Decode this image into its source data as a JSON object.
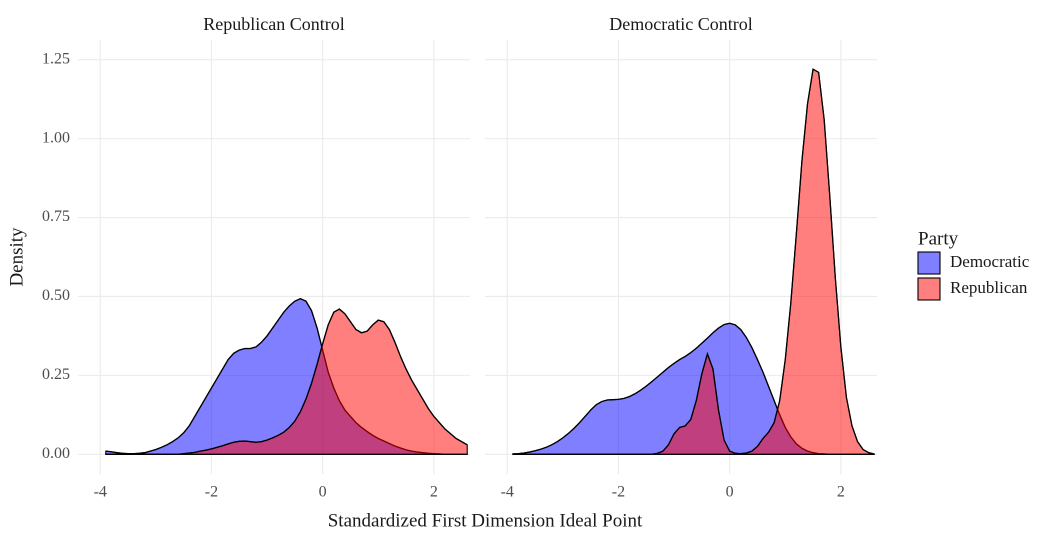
{
  "chart_data": {
    "type": "area",
    "xlabel": "Standardized First Dimension Ideal Point",
    "ylabel": "Density",
    "legend_title": "Party",
    "legend": "right",
    "grid": true,
    "opacity": 0.5,
    "series": [
      {
        "name": "Democratic",
        "color": "#0000ff"
      },
      {
        "name": "Republican",
        "color": "#ff0000"
      }
    ],
    "xlim": [
      -4.4,
      2.65
    ],
    "ylim": [
      -0.0625,
      1.3125
    ],
    "xticks": [
      -4,
      -2,
      0,
      2
    ],
    "yticks": [
      {
        "value": 0,
        "label": "0.00"
      },
      {
        "value": 0.25,
        "label": "0.25"
      },
      {
        "value": 0.5,
        "label": "0.50"
      },
      {
        "value": 0.75,
        "label": "0.75"
      },
      {
        "value": 1,
        "label": "1.00"
      },
      {
        "value": 1.25,
        "label": "1.25"
      }
    ],
    "x": [
      -3.9,
      -3.8,
      -3.7,
      -3.6,
      -3.5,
      -3.4,
      -3.3,
      -3.2,
      -3.1,
      -3.0,
      -2.9,
      -2.8,
      -2.7,
      -2.6,
      -2.5,
      -2.4,
      -2.3,
      -2.2,
      -2.1,
      -2.0,
      -1.9,
      -1.8,
      -1.7,
      -1.6,
      -1.5,
      -1.4,
      -1.3,
      -1.2,
      -1.1,
      -1.0,
      -0.9,
      -0.8,
      -0.7,
      -0.6,
      -0.5,
      -0.4,
      -0.3,
      -0.2,
      -0.1,
      0,
      0.1,
      0.2,
      0.3,
      0.4,
      0.5,
      0.6,
      0.7,
      0.8,
      0.9,
      1.0,
      1.1,
      1.2,
      1.3,
      1.4,
      1.5,
      1.6,
      1.7,
      1.8,
      1.9,
      2.0,
      2.1,
      2.2,
      2.3,
      2.4,
      2.5,
      2.6
    ],
    "facets": [
      {
        "title": "Republican Control",
        "series": [
          {
            "values": [
              0.01,
              0.008,
              0.005,
              0.003,
              0.002,
              0.002,
              0.003,
              0.005,
              0.01,
              0.015,
              0.022,
              0.03,
              0.04,
              0.052,
              0.068,
              0.09,
              0.12,
              0.15,
              0.18,
              0.21,
              0.24,
              0.27,
              0.3,
              0.32,
              0.33,
              0.335,
              0.335,
              0.34,
              0.355,
              0.375,
              0.4,
              0.425,
              0.45,
              0.47,
              0.485,
              0.493,
              0.485,
              0.455,
              0.4,
              0.33,
              0.26,
              0.21,
              0.17,
              0.14,
              0.12,
              0.1,
              0.085,
              0.072,
              0.06,
              0.05,
              0.042,
              0.034,
              0.026,
              0.02,
              0.014,
              0.01,
              0.007,
              0.005,
              0.003,
              0.002,
              0.001,
              0,
              0,
              0,
              0,
              0
            ]
          },
          {
            "values": [
              0,
              0,
              0,
              0,
              0,
              0,
              0,
              0,
              0,
              0,
              0,
              0,
              0,
              0,
              0.002,
              0.004,
              0.006,
              0.01,
              0.013,
              0.017,
              0.022,
              0.027,
              0.033,
              0.038,
              0.041,
              0.042,
              0.04,
              0.038,
              0.04,
              0.045,
              0.052,
              0.06,
              0.07,
              0.085,
              0.105,
              0.135,
              0.175,
              0.225,
              0.285,
              0.35,
              0.41,
              0.45,
              0.46,
              0.445,
              0.42,
              0.395,
              0.385,
              0.39,
              0.41,
              0.425,
              0.42,
              0.395,
              0.355,
              0.31,
              0.27,
              0.235,
              0.205,
              0.175,
              0.145,
              0.12,
              0.1,
              0.08,
              0.065,
              0.05,
              0.04,
              0.03
            ]
          }
        ]
      },
      {
        "title": "Democratic Control",
        "series": [
          {
            "values": [
              0.001,
              0.002,
              0.004,
              0.007,
              0.011,
              0.016,
              0.022,
              0.03,
              0.04,
              0.052,
              0.066,
              0.082,
              0.1,
              0.12,
              0.14,
              0.157,
              0.167,
              0.172,
              0.173,
              0.174,
              0.177,
              0.183,
              0.192,
              0.203,
              0.216,
              0.23,
              0.245,
              0.26,
              0.275,
              0.288,
              0.3,
              0.31,
              0.322,
              0.336,
              0.352,
              0.368,
              0.385,
              0.4,
              0.411,
              0.415,
              0.41,
              0.395,
              0.37,
              0.338,
              0.3,
              0.26,
              0.215,
              0.17,
              0.125,
              0.085,
              0.055,
              0.033,
              0.019,
              0.01,
              0.005,
              0.002,
              0.001,
              0,
              0,
              0,
              0,
              0,
              0,
              0,
              0,
              0
            ]
          },
          {
            "values": [
              0,
              0,
              0,
              0,
              0,
              0,
              0,
              0,
              0,
              0,
              0,
              0,
              0,
              0,
              0,
              0,
              0,
              0,
              0,
              0,
              0,
              0,
              0,
              0,
              0,
              0,
              0.003,
              0.01,
              0.03,
              0.065,
              0.085,
              0.09,
              0.11,
              0.17,
              0.255,
              0.318,
              0.27,
              0.14,
              0.045,
              0.01,
              0.003,
              0.002,
              0.004,
              0.01,
              0.025,
              0.05,
              0.07,
              0.1,
              0.17,
              0.3,
              0.48,
              0.7,
              0.93,
              1.11,
              1.22,
              1.21,
              1.06,
              0.82,
              0.56,
              0.34,
              0.18,
              0.09,
              0.04,
              0.015,
              0.005,
              0.001
            ]
          }
        ]
      }
    ]
  }
}
